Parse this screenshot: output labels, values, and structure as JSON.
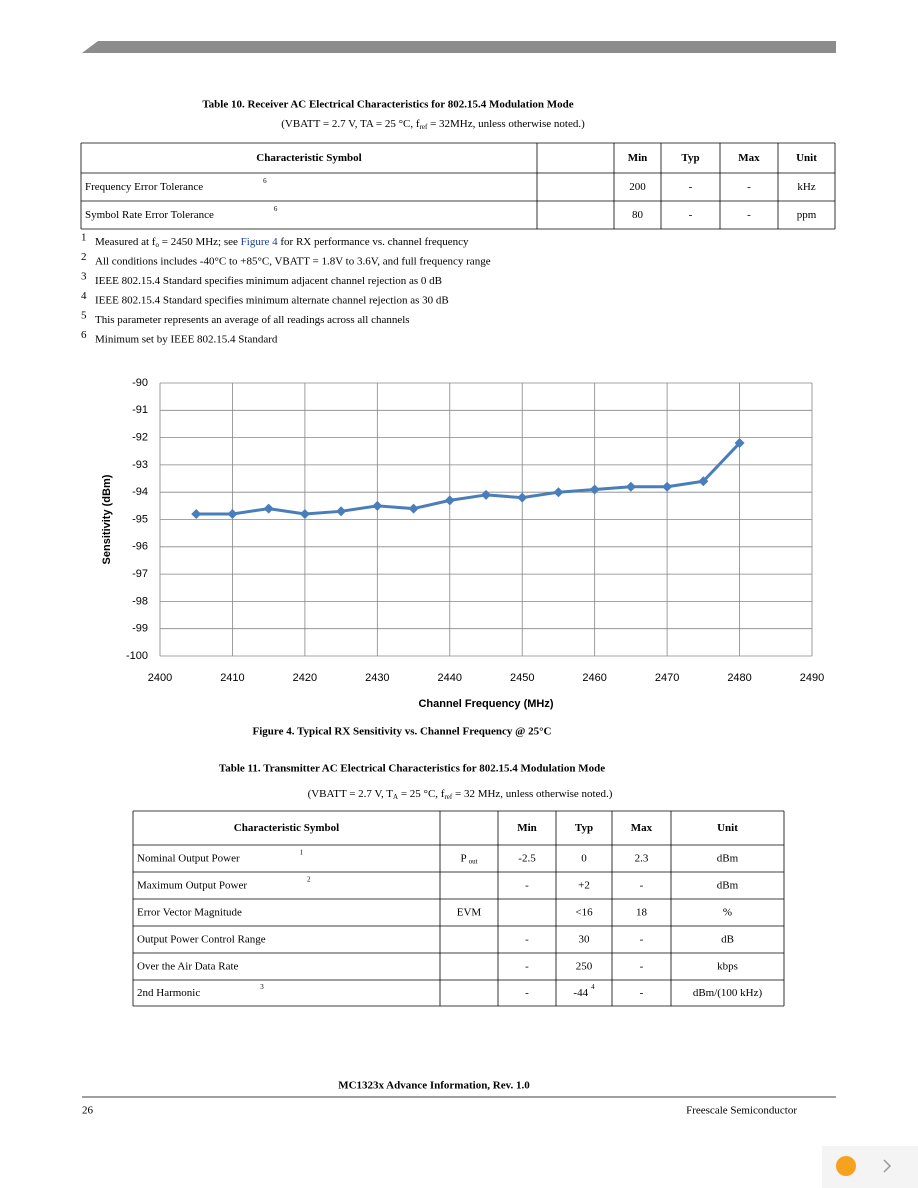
{
  "table_10": {
    "title": "Table 10. Receiver AC Electrical Characteristics for 802.15.4 Modulation Mode",
    "subtitle": [
      {
        "t": "(VBATT = 2.7 V, TA = 25 °C, f"
      },
      {
        "sub": "ref"
      },
      {
        "t": " = 32MHz, unless otherwise noted.)"
      }
    ],
    "header": {
      "name": "Characteristic Symbol",
      "min": "Min",
      "typ": "Typ",
      "max": "Max",
      "unit": "Unit"
    },
    "rows": [
      {
        "name": "Frequency Error Tolerance",
        "note": "6",
        "min": "200",
        "typ": "-",
        "max": "-",
        "unit": "kHz"
      },
      {
        "name": "Symbol Rate Error Tolerance",
        "note": "6",
        "min": "80",
        "typ": "-",
        "max": "-",
        "unit": "ppm"
      }
    ]
  },
  "footnotes": [
    {
      "mark": "1",
      "parts": [
        {
          "t": "Measured at f"
        },
        {
          "sub": "o"
        },
        {
          "t": " = 2450 MHz; see "
        },
        {
          "link": "Figure 4"
        },
        {
          "t": " for RX performance vs. channel frequency"
        }
      ]
    },
    {
      "mark": "2",
      "parts": [
        {
          "t": "All conditions includes -40°C to +85°C, VBATT = 1.8V to 3.6V, and full frequency range"
        }
      ]
    },
    {
      "mark": "3",
      "parts": [
        {
          "t": "IEEE 802.15.4 Standard specifies minimum adjacent channel rejection as 0 dB"
        }
      ]
    },
    {
      "mark": "4",
      "parts": [
        {
          "t": "IEEE 802.15.4 Standard specifies minimum alternate channel rejection as 30 dB"
        }
      ]
    },
    {
      "mark": "5",
      "parts": [
        {
          "t": "This parameter represents an average of all readings across all channels"
        }
      ]
    },
    {
      "mark": "6",
      "parts": [
        {
          "t": "Minimum set by IEEE 802.15.4 Standard"
        }
      ]
    }
  ],
  "chart_data": {
    "type": "line",
    "x_label": "Channel Frequency (MHz)",
    "y_label": "Sensitivity (dBm)",
    "x": [
      2405,
      2410,
      2415,
      2420,
      2425,
      2430,
      2435,
      2440,
      2445,
      2450,
      2455,
      2460,
      2465,
      2470,
      2475,
      2480
    ],
    "values": [
      -94.8,
      -94.8,
      -94.6,
      -94.8,
      -94.7,
      -94.5,
      -94.6,
      -94.3,
      -94.1,
      -94.2,
      -94.0,
      -93.9,
      -93.8,
      -93.8,
      -93.6,
      -92.2
    ],
    "color": "#4a7ebb",
    "xlim": [
      2400,
      2490
    ],
    "xticks": [
      2400,
      2410,
      2420,
      2430,
      2440,
      2450,
      2460,
      2470,
      2480,
      2490
    ],
    "ylim": [
      -100,
      -90
    ],
    "yticks": [
      -90,
      -91,
      -92,
      -93,
      -94,
      -95,
      -96,
      -97,
      -98,
      -99,
      -100
    ],
    "grid": true
  },
  "figure_caption": "Figure 4. Typical RX Sensitivity vs. Channel Frequency @ 25°C",
  "table_11": {
    "title": "Table 11. Transmitter AC Electrical Characteristics for 802.15.4 Modulation Mode",
    "subtitle": [
      {
        "t": "(VBATT = 2.7 V, T"
      },
      {
        "sub": "A"
      },
      {
        "t": " = 25 °C, f"
      },
      {
        "sub": "ref"
      },
      {
        "t": " = 32 MHz, unless otherwise noted.)"
      }
    ],
    "header": {
      "name": "Characteristic Symbol",
      "min": "Min",
      "typ": "Typ",
      "max": "Max",
      "unit": "Unit"
    },
    "rows": [
      {
        "name": "Nominal Output Power",
        "note": "1",
        "symbol": "P",
        "symbol_sub": "out",
        "min": "-2.5",
        "typ": "0",
        "max": "2.3",
        "unit": "dBm"
      },
      {
        "name": "Maximum Output Power",
        "note": "2",
        "min": "-",
        "typ": "+2",
        "max": "-",
        "unit": "dBm"
      },
      {
        "name": "Error Vector Magnitude",
        "symbol": "EVM",
        "typ": "<16",
        "max": "18",
        "unit": "%"
      },
      {
        "name": "Output Power Control Range",
        "min": "-",
        "typ": "30",
        "max": "-",
        "unit": "dB"
      },
      {
        "name": "Over the Air Data Rate",
        "min": "-",
        "typ": "250",
        "max": "-",
        "unit": "kbps"
      },
      {
        "name": "2nd Harmonic",
        "note": "3",
        "min": "-",
        "typ": "-44",
        "typ_note": "4",
        "max": "-",
        "unit": "dBm/(100 kHz)"
      }
    ]
  },
  "footer": {
    "center": "MC1323x Advance Information, Rev. 1.0",
    "page": "26",
    "company": "Freescale Semiconductor"
  }
}
